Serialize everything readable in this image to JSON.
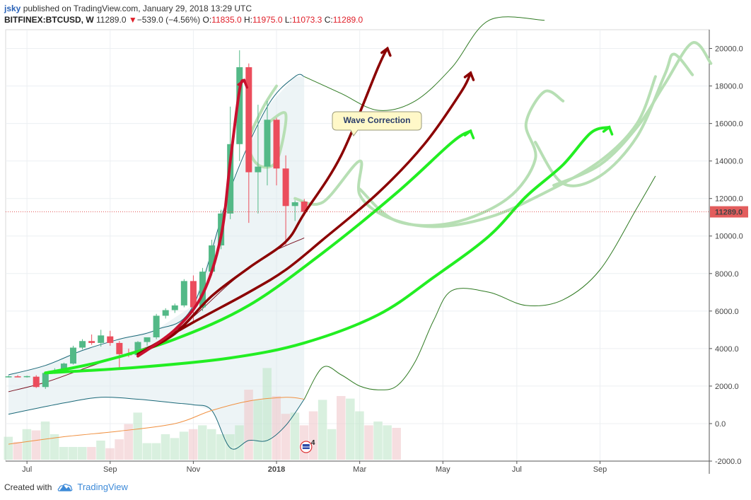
{
  "header": {
    "user": "jsky",
    "published": "published on TradingView.com, January 29, 2018 13:29 UTC",
    "symbol": "BITFINEX:BTCUSD, W",
    "last": "11289.0",
    "change": "−539.0 (−4.56%)",
    "o_label": "O:",
    "o_value": "11835.0",
    "h_label": "H:",
    "h_value": "11975.0",
    "l_label": "L:",
    "l_value": "11073.3",
    "c_label": "C:",
    "c_value": "11289.0"
  },
  "footer": {
    "created_with": "Created with",
    "brand": "TradingView"
  },
  "annotation": {
    "text": "Wave Correction"
  },
  "event_badge": "4",
  "chart_data": {
    "type": "candlestick",
    "price_axis": {
      "ylim": [
        -2000,
        21000
      ],
      "ticks": [
        -2000,
        0,
        2000,
        4000,
        6000,
        8000,
        10000,
        12000,
        14000,
        16000,
        18000,
        20000
      ]
    },
    "y_tick_labels": [
      "-2000.0",
      "0.0",
      "2000.0",
      "4000.0",
      "6000.0",
      "8000.0",
      "10000.0",
      "12000.0",
      "14000.0",
      "16000.0",
      "18000.0",
      "20000.0"
    ],
    "time_axis_labels": [
      {
        "label": "Jul",
        "week": 2
      },
      {
        "label": "Sep",
        "week": 11
      },
      {
        "label": "Nov",
        "week": 20
      },
      {
        "label": "2018",
        "week": 29
      },
      {
        "label": "Mar",
        "week": 38
      },
      {
        "label": "May",
        "week": 47
      },
      {
        "label": "Jul",
        "week": 55
      },
      {
        "label": "Sep",
        "week": 64
      }
    ],
    "last_price": 11289.0,
    "last_price_label": "11289.0",
    "candles": [
      {
        "w": 0,
        "o": 2500,
        "h": 2560,
        "l": 2460,
        "c": 2520
      },
      {
        "w": 1,
        "o": 2520,
        "h": 2580,
        "l": 2480,
        "c": 2500
      },
      {
        "w": 2,
        "o": 2500,
        "h": 2560,
        "l": 2450,
        "c": 2530
      },
      {
        "w": 3,
        "o": 2500,
        "h": 2580,
        "l": 1900,
        "c": 1950
      },
      {
        "w": 4,
        "o": 1950,
        "h": 2750,
        "l": 1850,
        "c": 2700
      },
      {
        "w": 5,
        "o": 2700,
        "h": 2950,
        "l": 2650,
        "c": 2750
      },
      {
        "w": 6,
        "o": 2750,
        "h": 3250,
        "l": 2700,
        "c": 3200
      },
      {
        "w": 7,
        "o": 3200,
        "h": 4150,
        "l": 3150,
        "c": 4050
      },
      {
        "w": 8,
        "o": 4050,
        "h": 4500,
        "l": 3950,
        "c": 4400
      },
      {
        "w": 9,
        "o": 4400,
        "h": 4750,
        "l": 4200,
        "c": 4300
      },
      {
        "w": 10,
        "o": 4300,
        "h": 5000,
        "l": 4100,
        "c": 4700
      },
      {
        "w": 11,
        "o": 4650,
        "h": 4950,
        "l": 4150,
        "c": 4300
      },
      {
        "w": 12,
        "o": 4300,
        "h": 4400,
        "l": 3000,
        "c": 3700
      },
      {
        "w": 13,
        "o": 3700,
        "h": 4000,
        "l": 3550,
        "c": 3650
      },
      {
        "w": 14,
        "o": 3650,
        "h": 4400,
        "l": 3600,
        "c": 4350
      },
      {
        "w": 15,
        "o": 4350,
        "h": 4500,
        "l": 4150,
        "c": 4600
      },
      {
        "w": 16,
        "o": 4600,
        "h": 5850,
        "l": 4500,
        "c": 5750
      },
      {
        "w": 17,
        "o": 5750,
        "h": 6150,
        "l": 5600,
        "c": 6050
      },
      {
        "w": 18,
        "o": 6050,
        "h": 6400,
        "l": 5900,
        "c": 6300
      },
      {
        "w": 19,
        "o": 6300,
        "h": 7700,
        "l": 6200,
        "c": 7600
      },
      {
        "w": 20,
        "o": 7600,
        "h": 7900,
        "l": 5400,
        "c": 6200
      },
      {
        "w": 21,
        "o": 6200,
        "h": 8300,
        "l": 6000,
        "c": 8100
      },
      {
        "w": 22,
        "o": 8100,
        "h": 9800,
        "l": 7900,
        "c": 9500
      },
      {
        "w": 23,
        "o": 9500,
        "h": 11400,
        "l": 9300,
        "c": 11200
      },
      {
        "w": 24,
        "o": 11200,
        "h": 16900,
        "l": 10900,
        "c": 14900
      },
      {
        "w": 25,
        "o": 14900,
        "h": 19900,
        "l": 14000,
        "c": 19000
      },
      {
        "w": 26,
        "o": 19000,
        "h": 19200,
        "l": 10700,
        "c": 13400
      },
      {
        "w": 27,
        "o": 13400,
        "h": 17000,
        "l": 11200,
        "c": 13700
      },
      {
        "w": 28,
        "o": 13700,
        "h": 17200,
        "l": 12700,
        "c": 16200
      },
      {
        "w": 29,
        "o": 16200,
        "h": 16300,
        "l": 12700,
        "c": 13600
      },
      {
        "w": 30,
        "o": 13600,
        "h": 14300,
        "l": 9500,
        "c": 11600
      },
      {
        "w": 31,
        "o": 11600,
        "h": 11900,
        "l": 10800,
        "c": 11800
      },
      {
        "w": 32,
        "o": 11835,
        "h": 11975,
        "l": 11073.3,
        "c": 11289
      }
    ],
    "volume_pct": [
      18,
      14,
      24,
      23,
      30,
      20,
      10,
      10,
      10,
      10,
      15,
      9,
      16,
      28,
      37,
      13,
      13,
      20,
      17,
      22,
      24,
      27,
      24,
      20,
      20,
      27,
      55,
      47,
      72,
      50,
      36,
      37,
      27,
      38,
      47,
      24,
      50,
      48,
      38,
      27,
      30,
      27,
      25
    ],
    "sma_short": [
      [
        0,
        1700
      ],
      [
        4,
        2200
      ],
      [
        8,
        2900
      ],
      [
        12,
        3600
      ],
      [
        16,
        4300
      ],
      [
        20,
        5700
      ],
      [
        24,
        7500
      ],
      [
        28,
        9000
      ],
      [
        32,
        9900
      ]
    ],
    "sma_long": [
      [
        0,
        -1100
      ],
      [
        6,
        -700
      ],
      [
        12,
        -400
      ],
      [
        18,
        0
      ],
      [
        22,
        700
      ],
      [
        26,
        1200
      ],
      [
        30,
        1400
      ],
      [
        32,
        1300
      ]
    ],
    "band_upper": [
      [
        0,
        2600
      ],
      [
        4,
        3100
      ],
      [
        8,
        3900
      ],
      [
        12,
        4500
      ],
      [
        16,
        5000
      ],
      [
        20,
        6300
      ],
      [
        24,
        12500
      ],
      [
        28,
        16900
      ],
      [
        31,
        18500
      ],
      [
        32,
        18500
      ]
    ],
    "band_lower": [
      [
        0,
        500
      ],
      [
        6,
        1100
      ],
      [
        10,
        1400
      ],
      [
        14,
        1300
      ],
      [
        18,
        1100
      ],
      [
        20,
        1000
      ],
      [
        22,
        700
      ],
      [
        24,
        -1300
      ],
      [
        26,
        -900
      ],
      [
        28,
        -900
      ],
      [
        30,
        -100
      ],
      [
        32,
        1300
      ]
    ],
    "projection_upper": [
      [
        32,
        18500
      ],
      [
        36,
        17600
      ],
      [
        40,
        16700
      ],
      [
        44,
        17200
      ],
      [
        48,
        19000
      ],
      [
        52,
        21500
      ],
      [
        58,
        21500
      ]
    ],
    "projection_lower": [
      [
        32,
        1300
      ],
      [
        34,
        3000
      ],
      [
        36,
        2600
      ],
      [
        38,
        2000
      ],
      [
        40,
        1800
      ],
      [
        42,
        2000
      ],
      [
        44,
        3300
      ],
      [
        46,
        5500
      ],
      [
        48,
        7100
      ],
      [
        52,
        7000
      ],
      [
        56,
        6300
      ],
      [
        60,
        6600
      ],
      [
        64,
        8200
      ],
      [
        68,
        11500
      ],
      [
        70,
        13200
      ]
    ],
    "drawn_paths": {
      "red_path": [
        [
          14,
          3600
        ],
        [
          18,
          5000
        ],
        [
          21,
          6900
        ],
        [
          23,
          10000
        ],
        [
          24,
          14000
        ],
        [
          25,
          17800
        ],
        [
          25.5,
          18300
        ]
      ],
      "darkred_1": [
        [
          14,
          3700
        ],
        [
          18,
          4800
        ],
        [
          22,
          6800
        ],
        [
          26,
          8300
        ],
        [
          30,
          9700
        ],
        [
          32,
          11200
        ],
        [
          36,
          14300
        ],
        [
          40,
          19000
        ],
        [
          41,
          20000
        ]
      ],
      "darkred_2": [
        [
          14,
          3700
        ],
        [
          20,
          5400
        ],
        [
          26,
          7000
        ],
        [
          30,
          8200
        ],
        [
          34,
          9800
        ],
        [
          40,
          12300
        ],
        [
          45,
          14900
        ],
        [
          49,
          17700
        ],
        [
          50,
          18700
        ]
      ],
      "green_1": [
        [
          4,
          2700
        ],
        [
          10,
          3300
        ],
        [
          18,
          4500
        ],
        [
          26,
          6300
        ],
        [
          34,
          9100
        ],
        [
          42,
          12300
        ],
        [
          48,
          15000
        ],
        [
          50,
          15600
        ]
      ],
      "green_2": [
        [
          4,
          2700
        ],
        [
          14,
          3000
        ],
        [
          24,
          3500
        ],
        [
          32,
          4300
        ],
        [
          40,
          5800
        ],
        [
          46,
          7800
        ],
        [
          52,
          10000
        ],
        [
          56,
          12100
        ],
        [
          60,
          13800
        ],
        [
          63,
          15500
        ],
        [
          65,
          15800
        ]
      ],
      "light_green_loops": [
        [
          [
            28,
            16000
          ],
          [
            30,
            16500
          ],
          [
            29,
            14000
          ],
          [
            27,
            13800
          ],
          [
            26,
            15000
          ],
          [
            27.5,
            16800
          ],
          [
            29,
            18000
          ]
        ],
        [
          [
            31,
            12000
          ],
          [
            34,
            11800
          ],
          [
            38,
            14000
          ],
          [
            38,
            12200
          ],
          [
            41,
            11000
          ],
          [
            46,
            10500
          ],
          [
            52,
            11000
          ],
          [
            58,
            12300
          ],
          [
            64,
            14000
          ],
          [
            68,
            16000
          ],
          [
            70,
            18500
          ]
        ],
        [
          [
            38,
            12500
          ],
          [
            42,
            10800
          ],
          [
            48,
            10700
          ],
          [
            54,
            12000
          ],
          [
            57,
            14100
          ],
          [
            56,
            16000
          ],
          [
            58,
            17700
          ],
          [
            60,
            17200
          ]
        ],
        [
          [
            57,
            15000
          ],
          [
            60,
            12800
          ],
          [
            64,
            13200
          ],
          [
            68,
            15300
          ],
          [
            71,
            18600
          ],
          [
            72,
            19700
          ],
          [
            74,
            18600
          ]
        ],
        [
          [
            59,
            12700
          ],
          [
            64,
            13800
          ],
          [
            68,
            15800
          ],
          [
            71,
            18100
          ],
          [
            74,
            20300
          ],
          [
            76,
            19200
          ]
        ]
      ]
    }
  },
  "colors": {
    "bull": "#53b987",
    "bear": "#eb4d5c",
    "red_path": "#c8102e",
    "darkred": "#8b0000",
    "bright_green": "#22ee22",
    "light_green": "#b7dfb4",
    "band": "#1a6878",
    "projection": "#2f7a22",
    "sma_short": "#7a1020",
    "sma_long": "#f09040",
    "last_price": "#e35d5d"
  }
}
